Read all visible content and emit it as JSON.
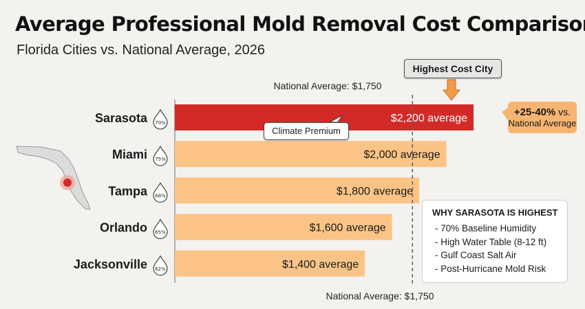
{
  "title": "Average Professional Mold Removal Cost Comparison",
  "subtitle": "Florida Cities vs. National Average, 2026",
  "colors": {
    "highlight_bar": "#d32a27",
    "bar": "#fbc486",
    "callout": "#f7b572",
    "arrow": "#f29a49",
    "map_land": "#dcdcdc",
    "map_marker": "#e0463f"
  },
  "chart_data": {
    "type": "bar",
    "orientation": "horizontal",
    "title": "Average Professional Mold Removal Cost Comparison",
    "subtitle": "Florida Cities vs. National Average, 2026",
    "categories": [
      "Sarasota",
      "Miami",
      "Tampa",
      "Orlando",
      "Jacksonville"
    ],
    "values": [
      2200,
      2000,
      1800,
      1600,
      1400
    ],
    "value_labels": [
      "$2,200 average",
      "$2,000 average",
      "$1,800 average",
      "$1,600 average",
      "$1,400 average"
    ],
    "humidity": [
      "70%",
      "75%",
      "68%",
      "65%",
      "62%"
    ],
    "highlight": "Sarasota",
    "xlim": [
      0,
      2400
    ],
    "grid": false,
    "reference_line": {
      "value": 1750,
      "label_top": "National Average: $1,750",
      "label_bottom": "National Average: $1,750"
    }
  },
  "annotations": {
    "highest_label": "Highest Cost City",
    "climate_premium": "Climate Premium",
    "premium_pct": "+25-40%",
    "premium_vs": "vs.",
    "premium_ref": "National Average"
  },
  "sidebar": {
    "title": "WHY SARASOTA IS HIGHEST",
    "items": [
      "- 70% Baseline Humidity",
      "- High Water Table (8-12 ft)",
      "- Gulf Coast Salt Air",
      "- Post-Hurricane Mold Risk"
    ]
  },
  "map": {
    "icon": "florida-map-icon",
    "marker": "sarasota-location-marker"
  }
}
